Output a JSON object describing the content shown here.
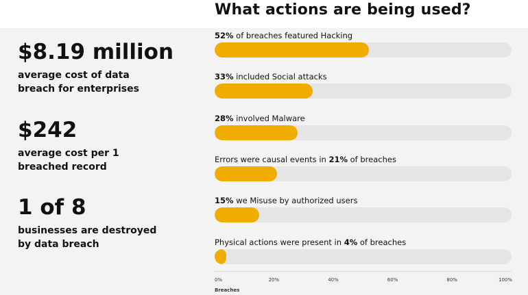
{
  "header": {
    "title": "What actions are being used?"
  },
  "stats": [
    {
      "value": "$8.19 million",
      "label": "average cost of data breach for enterprises"
    },
    {
      "value": "$242",
      "label": "average cost per 1 breached record"
    },
    {
      "value": "1 of 8",
      "label": "businesses are destroyed by data breach"
    }
  ],
  "colors": {
    "bar": "#f0ad00",
    "track": "#e5e5e5",
    "panel": "#f3f3f3"
  },
  "chart_data": {
    "type": "bar",
    "orientation": "horizontal",
    "title": "What actions are being used?",
    "xlabel": "Breaches",
    "xlim": [
      0,
      100
    ],
    "xticks": [
      "0%",
      "20%",
      "40%",
      "60%",
      "80%",
      "100%"
    ],
    "categories": [
      {
        "pre": "",
        "pct": "52%",
        "post": " of breaches featured Hacking"
      },
      {
        "pre": "",
        "pct": "33%",
        "post": " included Social attacks"
      },
      {
        "pre": "",
        "pct": "28%",
        "post": " involved Malware"
      },
      {
        "pre": "Errors were causal events in ",
        "pct": "21%",
        "post": " of breaches"
      },
      {
        "pre": "",
        "pct": "15%",
        "post": " we Misuse by authorized users"
      },
      {
        "pre": "Physical actions were present in ",
        "pct": "4%",
        "post": " of breaches"
      }
    ],
    "values": [
      52,
      33,
      28,
      21,
      15,
      4
    ],
    "grid": false
  }
}
